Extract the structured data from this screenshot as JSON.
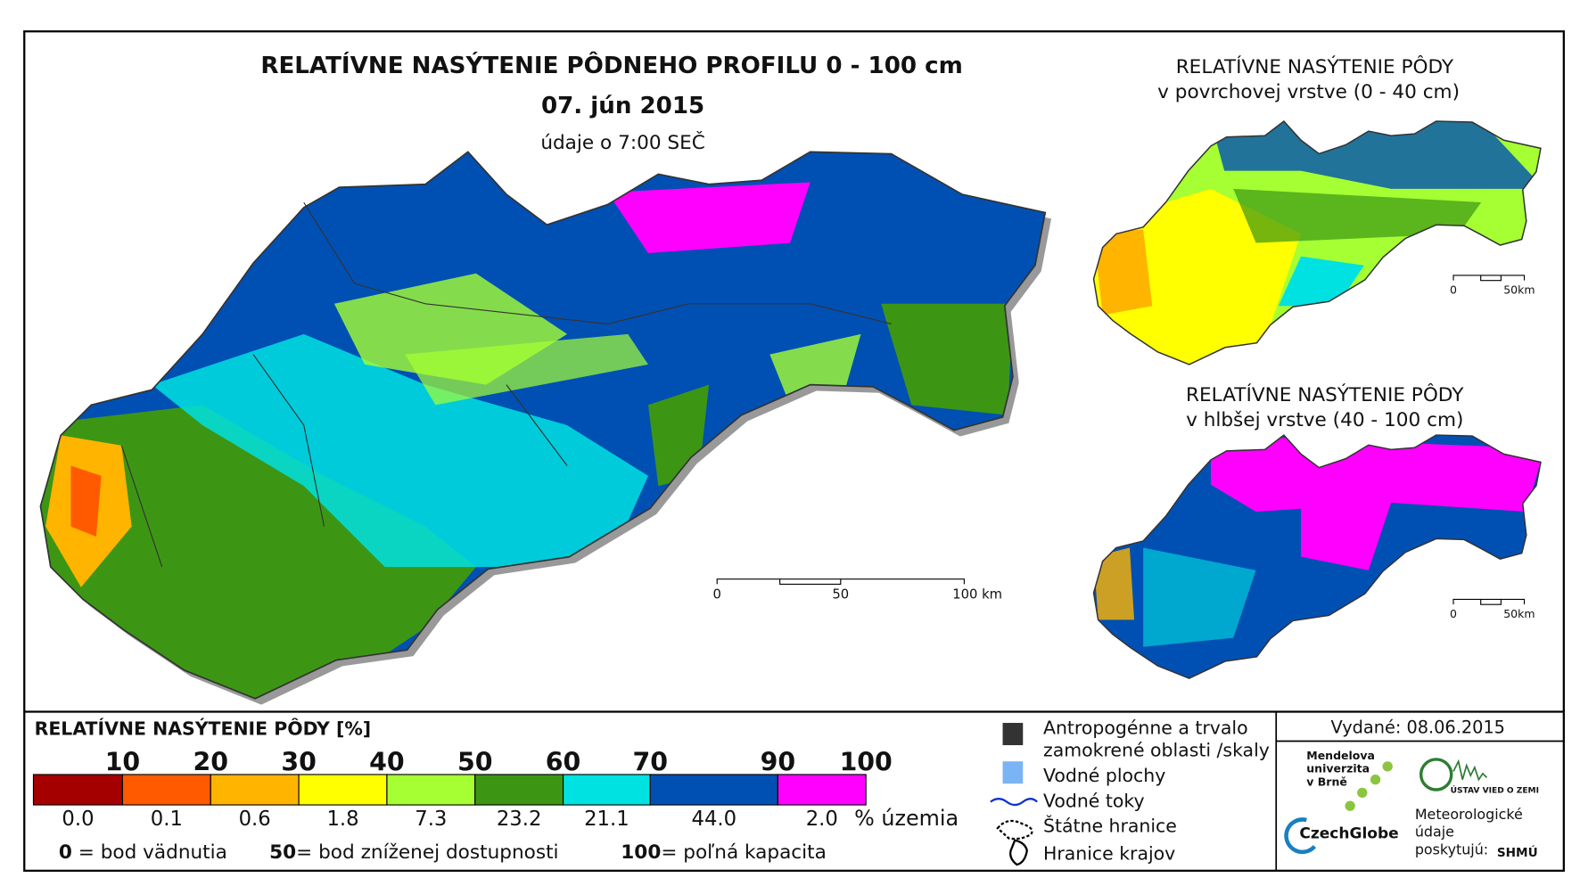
{
  "header": {
    "title": "RELATÍVNE NASÝTENIE PÔDNEHO PROFILU 0 - 100 cm",
    "date": "07. jún 2015",
    "note": "údaje o 7:00 SEČ"
  },
  "main_map": {
    "scale_bar": [
      "0",
      "50",
      "100 km"
    ]
  },
  "insets": [
    {
      "title": "RELATÍVNE NASÝTENIE PÔDY",
      "subtitle": "v povrchovej vrstve (0 - 40 cm)",
      "scale_bar": [
        "0",
        "50km"
      ]
    },
    {
      "title": "RELATÍVNE NASÝTENIE PÔDY",
      "subtitle": "v hlbšej vrstve (40 - 100 cm)",
      "scale_bar": [
        "0",
        "50km"
      ]
    }
  ],
  "legend": {
    "title": "RELATÍVNE NASÝTENIE PÔDY [%]",
    "thresholds": [
      10,
      20,
      30,
      40,
      50,
      60,
      70,
      90,
      100
    ],
    "colors": [
      "#a50000",
      "#ff5a00",
      "#ffb400",
      "#ffff00",
      "#a5ff32",
      "#3c9614",
      "#00e1e1",
      "#0050b4",
      "#ff00ff"
    ],
    "shares": [
      "0.0",
      "0.1",
      "0.6",
      "1.8",
      "7.3",
      "23.2",
      "21.1",
      "44.0",
      "2.0"
    ],
    "share_unit": "% územia",
    "notes": [
      {
        "key": 0,
        "text": "= bod vädnutia"
      },
      {
        "key": 50,
        "text": "= bod zníženej dostupnosti"
      },
      {
        "key": 100,
        "text": "= poľná kapacita"
      }
    ]
  },
  "symbols": [
    [
      "Antropogénne a trvalo",
      "zamokrené oblasti /skaly"
    ],
    [
      "Vodné plochy"
    ],
    [
      "Vodné toky"
    ],
    [
      "Štátne hranice"
    ],
    [
      "Hranice krajov"
    ]
  ],
  "footer": {
    "issued": "Vydané: 08.06.2015",
    "logos": [
      "Mendelova",
      "univerzita",
      "v Brně",
      "CzechGlobe",
      "ÚSTAV VIED O ZEMI",
      "Meteorologické",
      "údaje",
      "poskytujú:",
      "SHMÚ"
    ]
  }
}
